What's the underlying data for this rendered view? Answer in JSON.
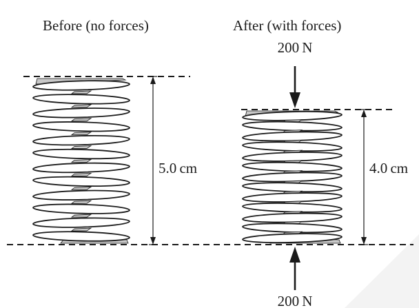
{
  "labels": {
    "before_title": "Before (no forces)",
    "after_title": "After (with forces)",
    "top_force": "200 N",
    "bottom_force": "200 N",
    "before_length": "5.0 cm",
    "after_length": "4.0 cm"
  },
  "springs": {
    "before": {
      "coil_count": 12
    },
    "after": {
      "coil_count": 13
    }
  }
}
